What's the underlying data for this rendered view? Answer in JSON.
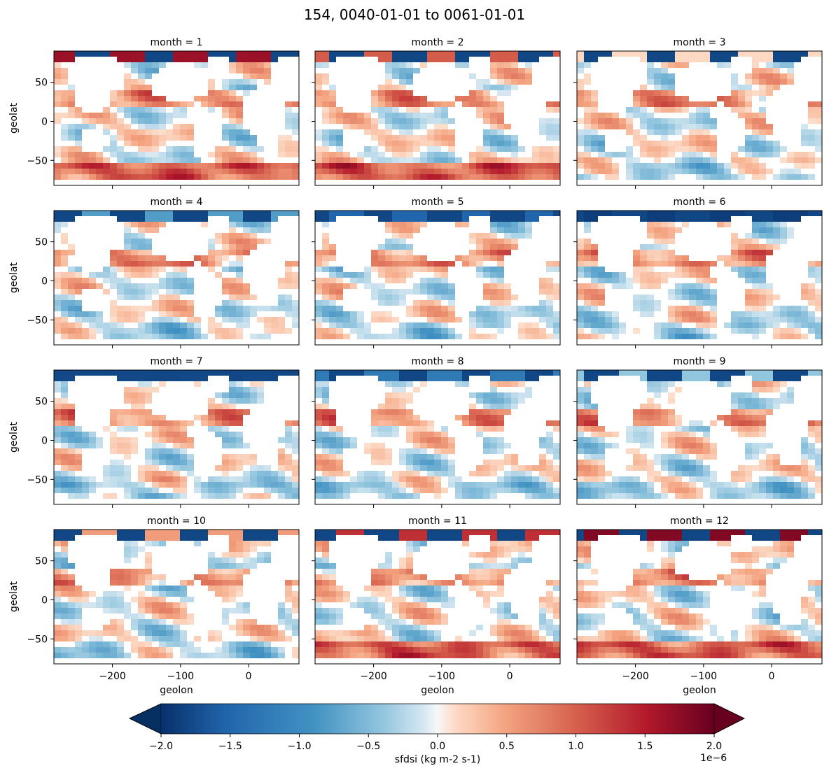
{
  "figure": {
    "title": "154, 0040-01-01 to 0061-01-01"
  },
  "chart_data": {
    "type": "heatmap",
    "panels": [
      {
        "title": "month = 1"
      },
      {
        "title": "month = 2"
      },
      {
        "title": "month = 3"
      },
      {
        "title": "month = 4"
      },
      {
        "title": "month = 5"
      },
      {
        "title": "month = 6"
      },
      {
        "title": "month = 7"
      },
      {
        "title": "month = 8"
      },
      {
        "title": "month = 9"
      },
      {
        "title": "month = 10"
      },
      {
        "title": "month = 11"
      },
      {
        "title": "month = 12"
      }
    ],
    "xlabel": "geolon",
    "ylabel": "geolat",
    "xlim": [
      -286,
      74
    ],
    "ylim": [
      -82,
      90
    ],
    "xticks": [
      -200,
      -100,
      0
    ],
    "xtick_labels": [
      "−200",
      "−100",
      "0"
    ],
    "yticks": [
      50,
      0,
      -50
    ],
    "ytick_labels": [
      "50",
      "0",
      "−50"
    ],
    "sharex": true,
    "sharey": true,
    "colormap": "RdBu_r",
    "colorbar": {
      "label": "sfdsi (kg m-2 s-1)",
      "range": [
        -2e-06,
        2e-06
      ],
      "ticks": [
        -2.0,
        -1.5,
        -1.0,
        -0.5,
        0.0,
        0.5,
        1.0,
        1.5,
        2.0
      ],
      "tick_labels": [
        "−2.0",
        "−1.5",
        "−1.0",
        "−0.5",
        "0.0",
        "0.5",
        "1.0",
        "1.5",
        "2.0"
      ],
      "offset_label": "1e−6",
      "extend": "both"
    }
  }
}
